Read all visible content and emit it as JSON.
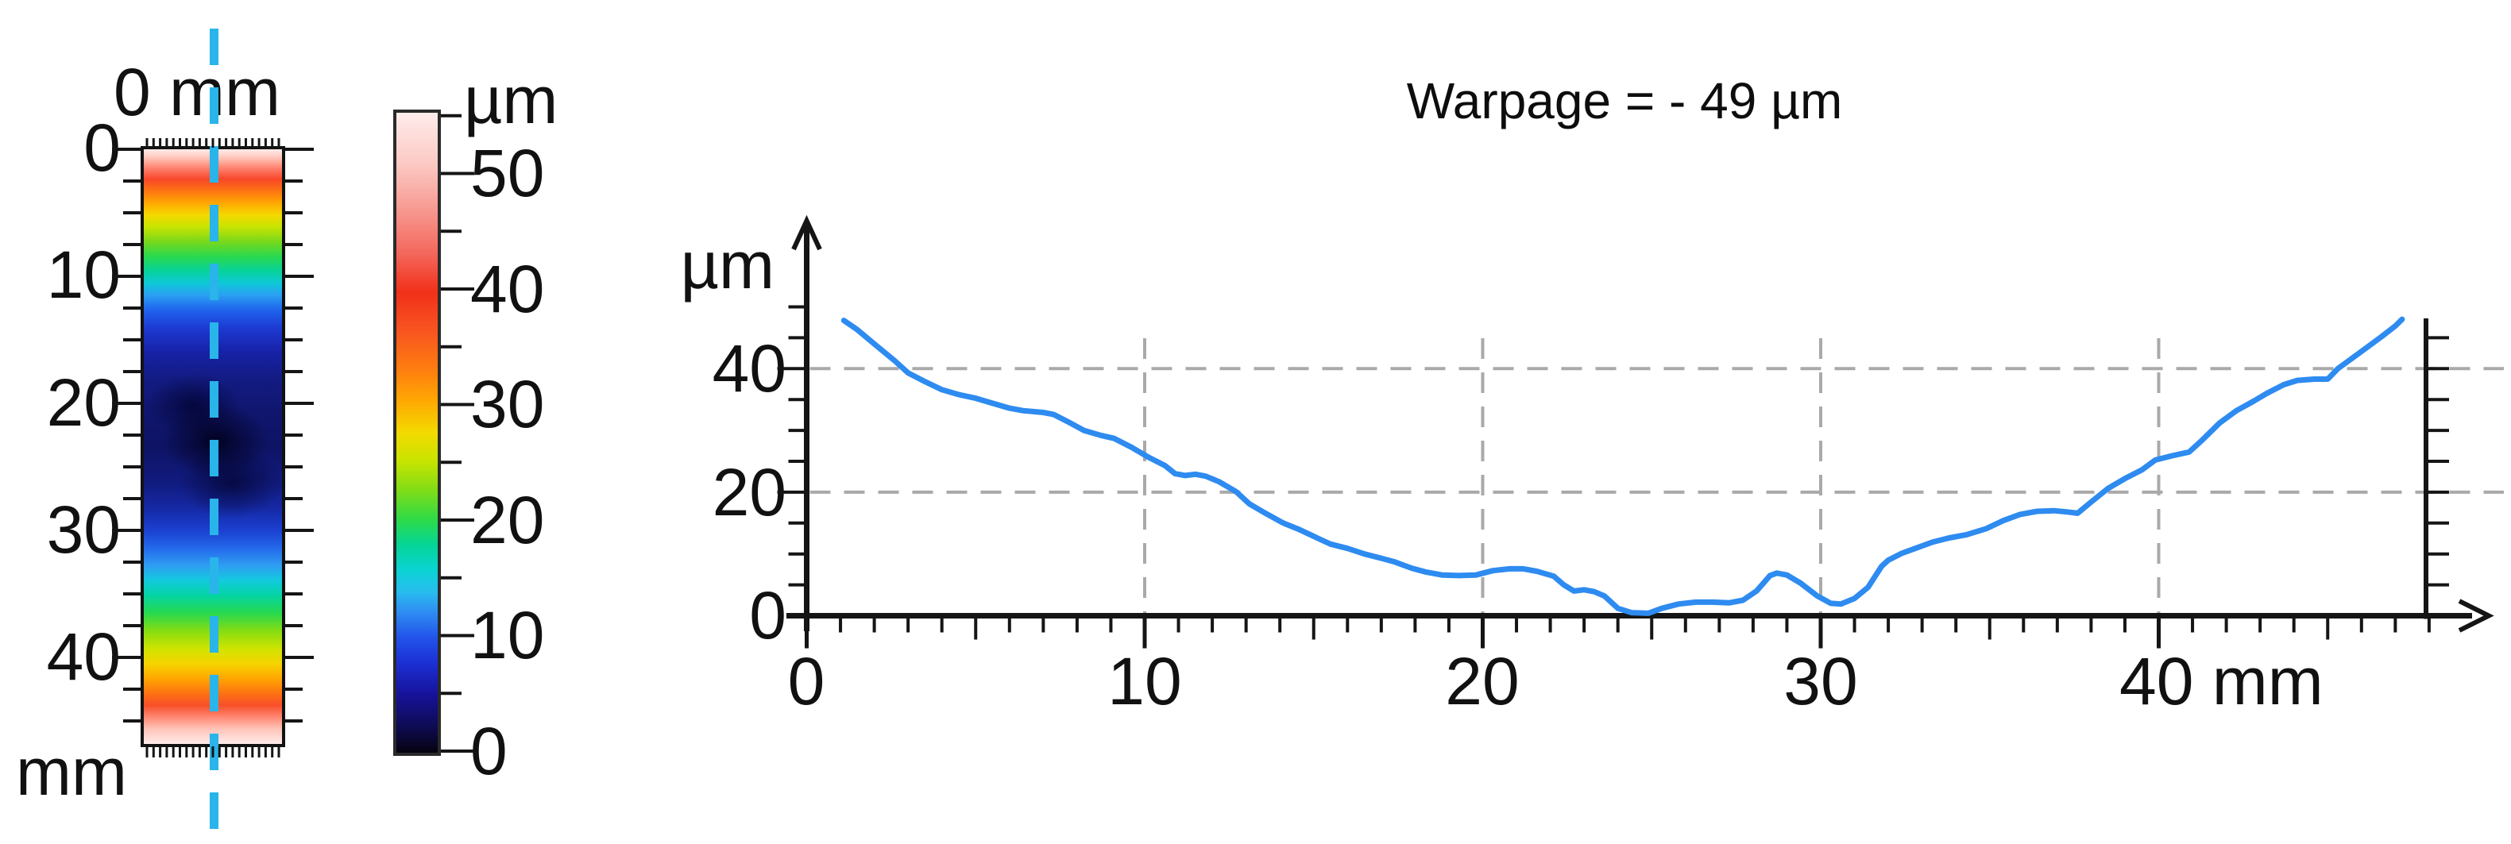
{
  "title": "Warpage = - 49 µm",
  "colors": {
    "curve": "#2e8bf0",
    "section_line": "#29b4ea",
    "grid": "#a9a9a9",
    "axis": "#151515"
  },
  "chart_data": [
    {
      "type": "heatmap",
      "name": "surface-height-map",
      "axis": {
        "top_label": "0 mm",
        "bottom_label": "mm",
        "tick_labels": [
          "0",
          "10",
          "20",
          "30",
          "40"
        ],
        "tick_values_mm": [
          0,
          10,
          20,
          30,
          40
        ],
        "range_mm": [
          0,
          47
        ]
      },
      "colorbar": {
        "unit_label": "µm",
        "tick_labels": [
          "50",
          "40",
          "30",
          "20",
          "10",
          "0"
        ],
        "tick_values_um": [
          50,
          40,
          30,
          20,
          10,
          0
        ],
        "range_um": [
          0,
          55
        ]
      },
      "section_marker": "cyan dashed vertical line near map centerline",
      "pattern": "high ~45-55 µm at top 0-4 mm and bottom 43-47 mm edges, grading inward through yellow/green/cyan, darkest ~0-5 µm band at 20-30 mm"
    },
    {
      "type": "line",
      "name": "height-profile",
      "annotation": "Warpage = - 49 µm",
      "x_label": "mm",
      "y_label": "µm",
      "x_tick_labels": [
        "0",
        "10",
        "20",
        "30",
        "40 mm"
      ],
      "x_tick_values": [
        0,
        10,
        20,
        30,
        40
      ],
      "y_tick_labels": [
        "40",
        "20",
        "0"
      ],
      "y_tick_values": [
        40,
        20,
        0
      ],
      "xlim": [
        0,
        48.5
      ],
      "ylim": [
        0,
        52
      ],
      "grid": "dashed gray at x=10,20,30,40 mm and y=20,40 µm",
      "minor_ticks": "x every 1 mm, y every 5 µm, right end-axis ticks every 5 µm",
      "series": [
        {
          "name": "profile",
          "color": "#2e8bf0",
          "points_mm_um": [
            [
              1.1,
              47.8
            ],
            [
              1.5,
              46.3
            ],
            [
              2.0,
              44.0
            ],
            [
              2.6,
              41.3
            ],
            [
              3.0,
              39.3
            ],
            [
              3.5,
              37.9
            ],
            [
              4.0,
              36.6
            ],
            [
              4.5,
              35.8
            ],
            [
              5.0,
              35.2
            ],
            [
              5.5,
              34.4
            ],
            [
              6.0,
              33.6
            ],
            [
              6.4,
              33.2
            ],
            [
              7.0,
              32.9
            ],
            [
              7.3,
              32.6
            ],
            [
              7.8,
              31.2
            ],
            [
              8.2,
              30.0
            ],
            [
              8.7,
              29.2
            ],
            [
              9.1,
              28.7
            ],
            [
              9.6,
              27.3
            ],
            [
              10.1,
              25.7
            ],
            [
              10.6,
              24.3
            ],
            [
              10.9,
              23.0
            ],
            [
              11.2,
              22.7
            ],
            [
              11.5,
              22.9
            ],
            [
              11.8,
              22.6
            ],
            [
              12.2,
              21.7
            ],
            [
              12.7,
              20.1
            ],
            [
              13.1,
              18.1
            ],
            [
              13.6,
              16.5
            ],
            [
              14.1,
              15.0
            ],
            [
              14.6,
              13.9
            ],
            [
              15.1,
              12.6
            ],
            [
              15.5,
              11.6
            ],
            [
              16.0,
              10.9
            ],
            [
              16.5,
              10.0
            ],
            [
              17.0,
              9.3
            ],
            [
              17.4,
              8.7
            ],
            [
              17.9,
              7.7
            ],
            [
              18.3,
              7.1
            ],
            [
              18.8,
              6.6
            ],
            [
              19.3,
              6.5
            ],
            [
              19.8,
              6.6
            ],
            [
              20.3,
              7.3
            ],
            [
              20.8,
              7.6
            ],
            [
              21.2,
              7.6
            ],
            [
              21.6,
              7.2
            ],
            [
              22.1,
              6.4
            ],
            [
              22.4,
              5.0
            ],
            [
              22.7,
              4.0
            ],
            [
              23.0,
              4.2
            ],
            [
              23.3,
              3.9
            ],
            [
              23.6,
              3.2
            ],
            [
              24.0,
              1.2
            ],
            [
              24.4,
              0.5
            ],
            [
              24.9,
              0.4
            ],
            [
              25.3,
              1.2
            ],
            [
              25.8,
              1.9
            ],
            [
              26.3,
              2.2
            ],
            [
              26.8,
              2.2
            ],
            [
              27.3,
              2.1
            ],
            [
              27.7,
              2.5
            ],
            [
              28.1,
              4.0
            ],
            [
              28.5,
              6.5
            ],
            [
              28.7,
              6.9
            ],
            [
              29.0,
              6.6
            ],
            [
              29.4,
              5.3
            ],
            [
              29.9,
              3.2
            ],
            [
              30.3,
              2.0
            ],
            [
              30.6,
              1.9
            ],
            [
              31.0,
              2.8
            ],
            [
              31.4,
              4.6
            ],
            [
              31.8,
              8.0
            ],
            [
              32.0,
              9.0
            ],
            [
              32.4,
              10.1
            ],
            [
              32.9,
              11.1
            ],
            [
              33.3,
              11.9
            ],
            [
              33.8,
              12.6
            ],
            [
              34.3,
              13.1
            ],
            [
              34.9,
              14.1
            ],
            [
              35.4,
              15.4
            ],
            [
              35.9,
              16.4
            ],
            [
              36.4,
              16.9
            ],
            [
              36.9,
              17.0
            ],
            [
              37.3,
              16.8
            ],
            [
              37.6,
              16.6
            ],
            [
              38.0,
              18.4
            ],
            [
              38.5,
              20.6
            ],
            [
              39.0,
              22.2
            ],
            [
              39.5,
              23.6
            ],
            [
              39.9,
              25.2
            ],
            [
              40.4,
              25.9
            ],
            [
              40.9,
              26.5
            ],
            [
              41.3,
              28.5
            ],
            [
              41.8,
              31.2
            ],
            [
              42.3,
              33.2
            ],
            [
              42.8,
              34.7
            ],
            [
              43.2,
              36.0
            ],
            [
              43.7,
              37.4
            ],
            [
              44.1,
              38.1
            ],
            [
              44.6,
              38.3
            ],
            [
              45.0,
              38.3
            ],
            [
              45.3,
              40.0
            ],
            [
              45.7,
              41.6
            ],
            [
              46.1,
              43.2
            ],
            [
              46.6,
              45.2
            ],
            [
              47.0,
              46.9
            ],
            [
              47.2,
              48.0
            ]
          ]
        }
      ]
    }
  ]
}
